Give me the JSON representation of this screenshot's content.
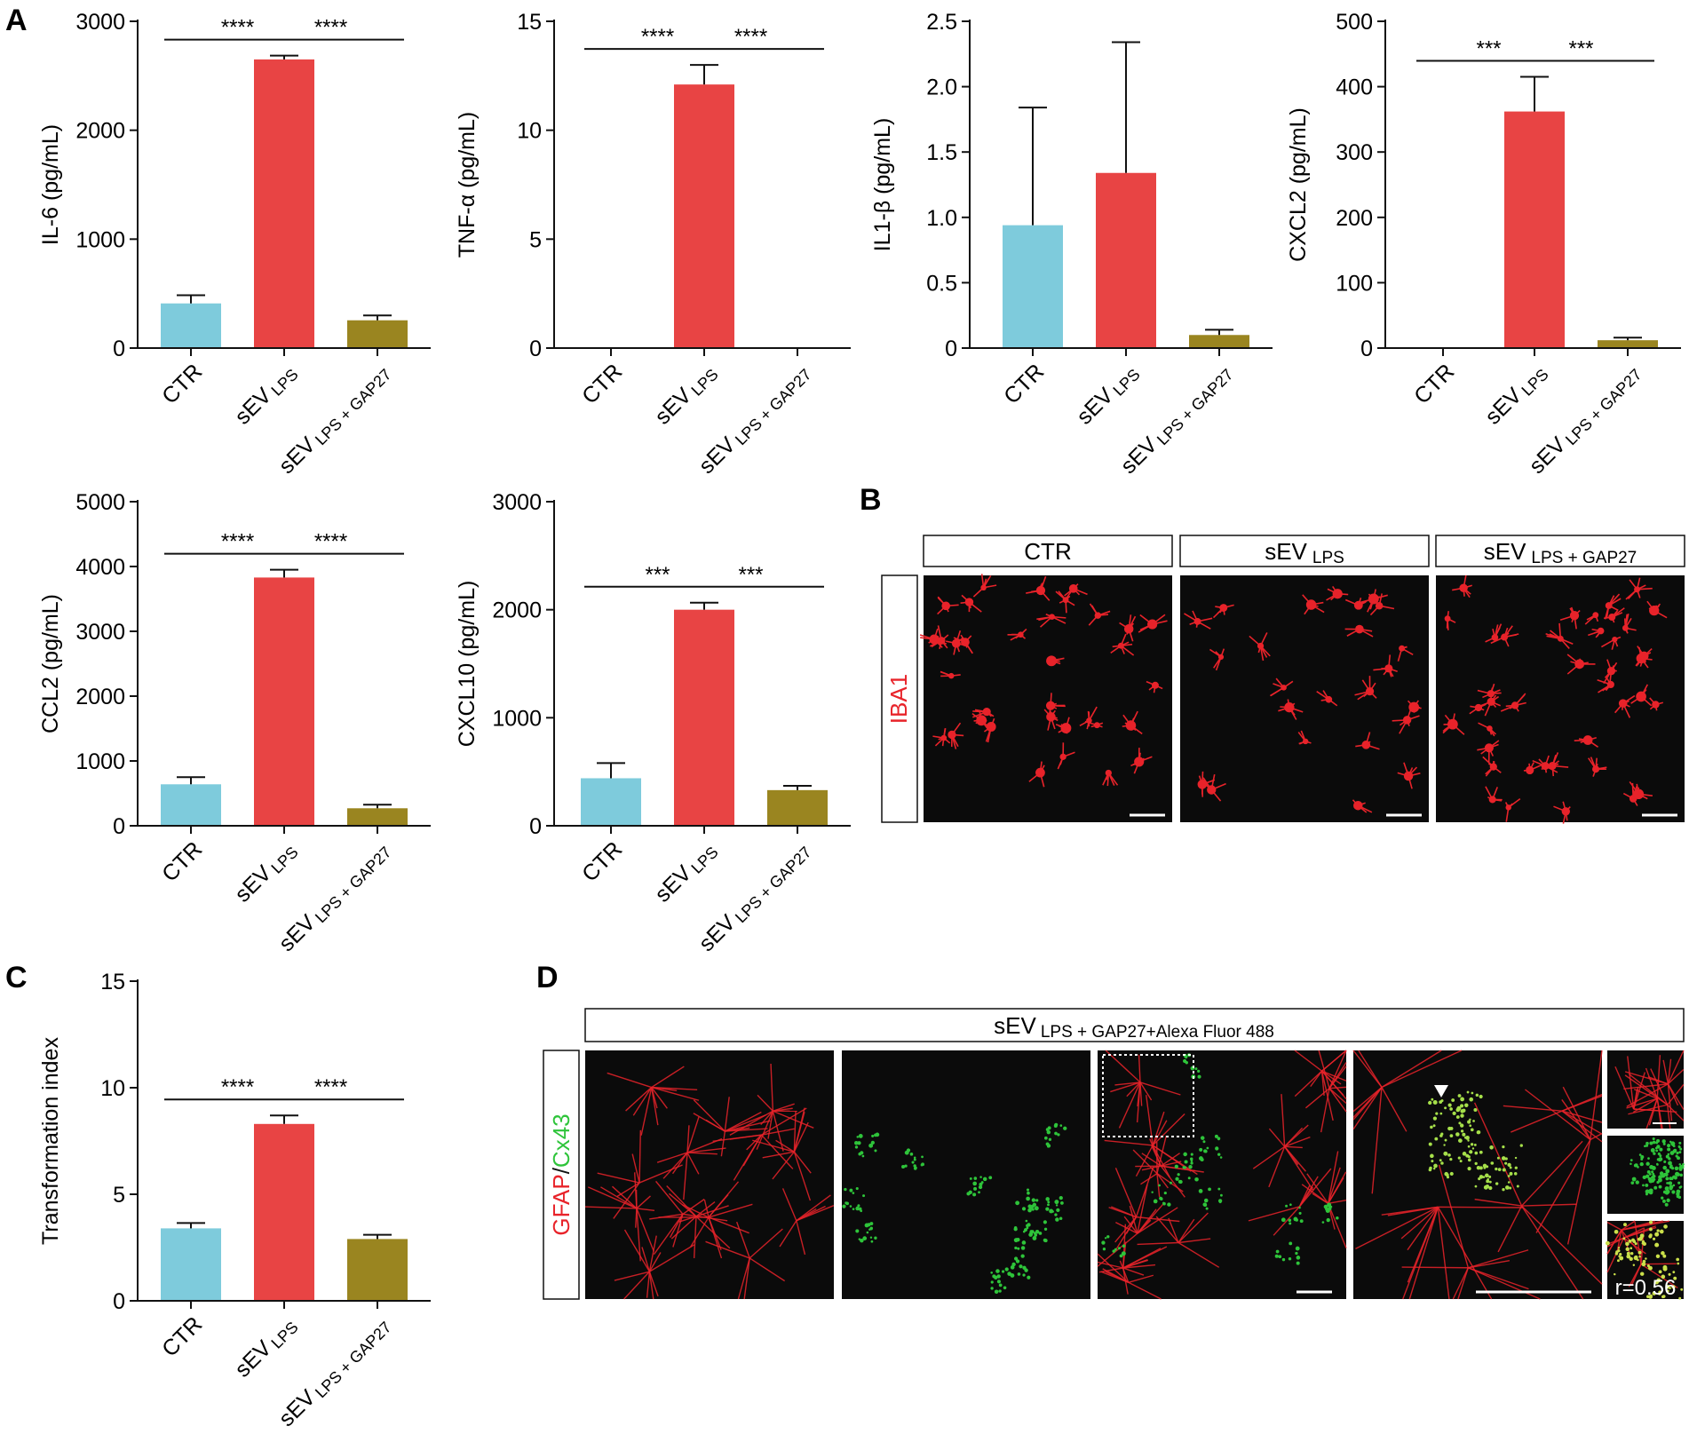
{
  "panels": {
    "A": "A",
    "B": "B",
    "C": "C",
    "D": "D"
  },
  "colors": {
    "ctr": "#7ecbdc",
    "lps": "#e84444",
    "gap": "#9a8520",
    "axis": "#111111",
    "micro_bg": "#0b0b0b",
    "red_stain": "#e8232a",
    "green_stain": "#2ec43a"
  },
  "group_labels": {
    "ctr": "CTR",
    "lps_base": "sEV",
    "lps_sub": "LPS",
    "gap_base": "sEV",
    "gap_sub": "LPS + GAP27"
  },
  "chart_data": [
    {
      "type": "bar",
      "panel": "A",
      "ylabel": "IL-6 (pg/mL)",
      "ylim": [
        0,
        3000
      ],
      "ticks": [
        "0",
        "1000",
        "2000",
        "3000"
      ],
      "tick_values": [
        0,
        1000,
        2000,
        3000
      ],
      "categories": [
        "CTR",
        "sEV LPS",
        "sEV LPS + GAP27"
      ],
      "values": [
        410,
        2650,
        255
      ],
      "errors": [
        75,
        35,
        45
      ],
      "significance": [
        {
          "from": 0,
          "to": 1,
          "label": "****"
        },
        {
          "from": 1,
          "to": 2,
          "label": "****"
        }
      ]
    },
    {
      "type": "bar",
      "panel": "A",
      "ylabel": "TNF-α (pg/mL)",
      "ylim": [
        0,
        15
      ],
      "ticks": [
        "0",
        "5",
        "10",
        "15"
      ],
      "tick_values": [
        0,
        5,
        10,
        15
      ],
      "categories": [
        "CTR",
        "sEV LPS",
        "sEV LPS + GAP27"
      ],
      "values": [
        0,
        12.1,
        0
      ],
      "errors": [
        0,
        0.9,
        0
      ],
      "significance": [
        {
          "from": 0,
          "to": 1,
          "label": "****"
        },
        {
          "from": 1,
          "to": 2,
          "label": "****"
        }
      ]
    },
    {
      "type": "bar",
      "panel": "A",
      "ylabel": "IL1-β (pg/mL)",
      "ylim": [
        0,
        2.5
      ],
      "ticks": [
        "0",
        "0.5",
        "1.0",
        "1.5",
        "2.0",
        "2.5"
      ],
      "tick_values": [
        0,
        0.5,
        1.0,
        1.5,
        2.0,
        2.5
      ],
      "categories": [
        "CTR",
        "sEV LPS",
        "sEV LPS + GAP27"
      ],
      "values": [
        0.94,
        1.34,
        0.1
      ],
      "errors": [
        0.9,
        1.0,
        0.04
      ],
      "significance": []
    },
    {
      "type": "bar",
      "panel": "A",
      "ylabel": "CXCL2 (pg/mL)",
      "ylim": [
        0,
        500
      ],
      "ticks": [
        "0",
        "100",
        "200",
        "300",
        "400",
        "500"
      ],
      "tick_values": [
        0,
        100,
        200,
        300,
        400,
        500
      ],
      "categories": [
        "CTR",
        "sEV LPS",
        "sEV LPS + GAP27"
      ],
      "values": [
        0,
        362,
        12
      ],
      "errors": [
        0,
        53,
        4
      ],
      "significance": [
        {
          "from": 0,
          "to": 1,
          "label": "***"
        },
        {
          "from": 1,
          "to": 2,
          "label": "***"
        }
      ]
    },
    {
      "type": "bar",
      "panel": "A",
      "ylabel": "CCL2 (pg/mL)",
      "ylim": [
        0,
        5000
      ],
      "ticks": [
        "0",
        "1000",
        "2000",
        "3000",
        "4000",
        "5000"
      ],
      "tick_values": [
        0,
        1000,
        2000,
        3000,
        4000,
        5000
      ],
      "categories": [
        "CTR",
        "sEV LPS",
        "sEV LPS + GAP27"
      ],
      "values": [
        640,
        3830,
        270
      ],
      "errors": [
        110,
        120,
        55
      ],
      "significance": [
        {
          "from": 0,
          "to": 1,
          "label": "****"
        },
        {
          "from": 1,
          "to": 2,
          "label": "****"
        }
      ]
    },
    {
      "type": "bar",
      "panel": "A",
      "ylabel": "CXCL10 (pg/mL)",
      "ylim": [
        0,
        3000
      ],
      "ticks": [
        "0",
        "1000",
        "2000",
        "3000"
      ],
      "tick_values": [
        0,
        1000,
        2000,
        3000
      ],
      "categories": [
        "CTR",
        "sEV LPS",
        "sEV LPS + GAP27"
      ],
      "values": [
        440,
        2000,
        330
      ],
      "errors": [
        140,
        65,
        40
      ],
      "significance": [
        {
          "from": 0,
          "to": 1,
          "label": "***"
        },
        {
          "from": 1,
          "to": 2,
          "label": "***"
        }
      ]
    },
    {
      "type": "bar",
      "panel": "C",
      "ylabel": "Transformation index",
      "ylim": [
        0,
        15
      ],
      "ticks": [
        "0",
        "5",
        "10",
        "15"
      ],
      "tick_values": [
        0,
        5,
        10,
        15
      ],
      "categories": [
        "CTR",
        "sEV LPS",
        "sEV LPS + GAP27"
      ],
      "values": [
        3.4,
        8.3,
        2.9
      ],
      "errors": [
        0.25,
        0.4,
        0.2
      ],
      "significance": [
        {
          "from": 0,
          "to": 1,
          "label": "****"
        },
        {
          "from": 1,
          "to": 2,
          "label": "****"
        }
      ]
    }
  ],
  "panel_b": {
    "headers": [
      {
        "base": "CTR",
        "sub": ""
      },
      {
        "base": "sEV",
        "sub": "LPS"
      },
      {
        "base": "sEV",
        "sub": "LPS + GAP27"
      }
    ],
    "side_label": "IBA1"
  },
  "panel_d": {
    "header_base": "sEV",
    "header_sub": "LPS + GAP27+Alexa Fluor 488",
    "side_label_red": "GFAP",
    "side_label_sep": "/",
    "side_label_green": "Cx43",
    "correlation": "r=0.56"
  }
}
